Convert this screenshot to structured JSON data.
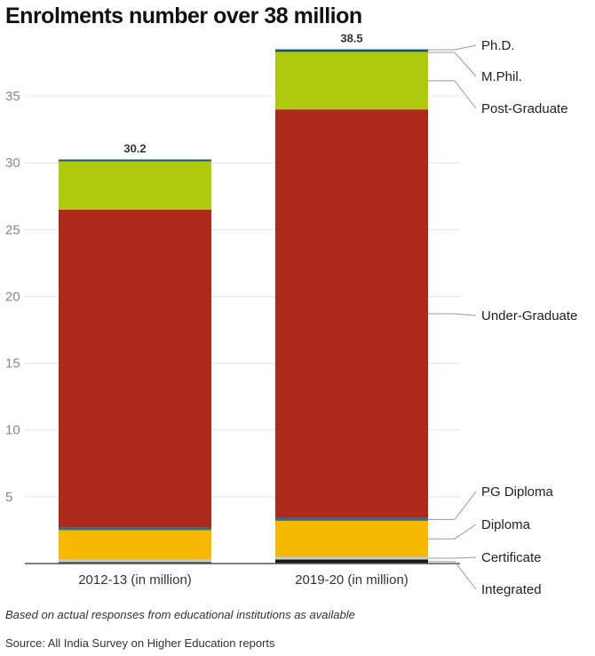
{
  "chart_data": {
    "type": "bar",
    "stacked": true,
    "title": "Enrolments number over 38 million",
    "categories": [
      "2012-13 (in million)",
      "2019-20 (in million)"
    ],
    "totals": [
      "30.2",
      "38.5"
    ],
    "ylim": [
      0,
      39
    ],
    "yticks": [
      5,
      10,
      15,
      20,
      25,
      30,
      35
    ],
    "grid": true,
    "series": [
      {
        "name": "Integrated",
        "color": "#1a1a1a",
        "values": [
          0.1,
          0.3
        ]
      },
      {
        "name": "Certificate",
        "color": "#c9c9c9",
        "values": [
          0.2,
          0.2
        ]
      },
      {
        "name": "Diploma",
        "color": "#f7b900",
        "values": [
          2.2,
          2.7
        ]
      },
      {
        "name": "PG Diploma",
        "color": "#2e6e9e",
        "values": [
          0.2,
          0.2
        ]
      },
      {
        "name": "Under-Graduate",
        "color": "#ad2a1a",
        "values": [
          23.8,
          30.6
        ]
      },
      {
        "name": "Post-Graduate",
        "color": "#afc90c",
        "values": [
          3.6,
          4.3
        ]
      },
      {
        "name": "M.Phil.",
        "color": "#3a8fb0",
        "values": [
          0.03,
          0.03
        ]
      },
      {
        "name": "Ph.D.",
        "color": "#1f4e79",
        "values": [
          0.12,
          0.17
        ]
      }
    ],
    "legend_labels": [
      "Ph.D.",
      "M.Phil.",
      "Post-Graduate",
      "Under-Graduate",
      "PG Diploma",
      "Diploma",
      "Certificate",
      "Integrated"
    ],
    "note": "Based on actual responses from educational institutions as available",
    "source": "Source: All India Survey on Higher Education reports"
  }
}
